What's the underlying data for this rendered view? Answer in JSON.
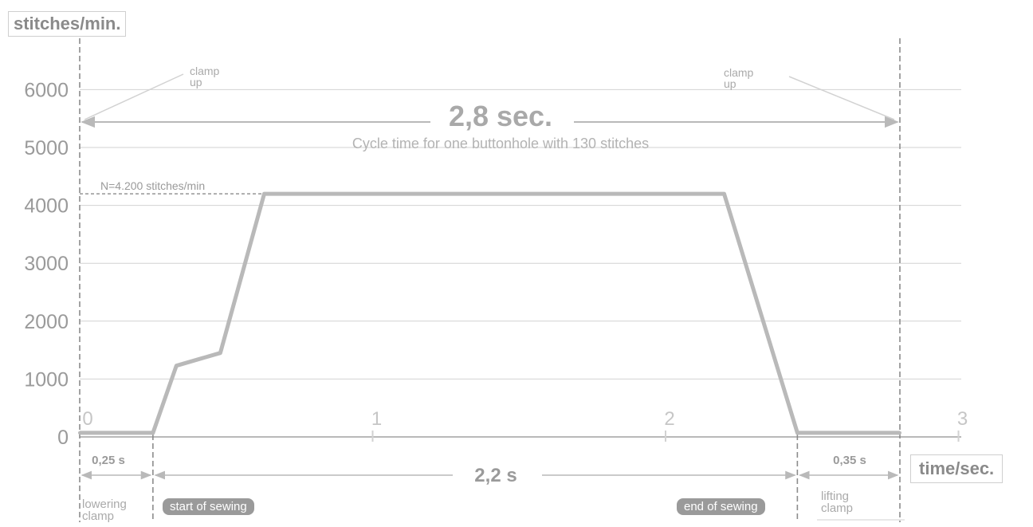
{
  "chart_data": {
    "type": "line",
    "ylabel": "stitches/min.",
    "xlabel": "time/sec.",
    "ylim": [
      0,
      6600
    ],
    "xlim": [
      0,
      3
    ],
    "y_ticks": [
      "0",
      "1000",
      "2000",
      "3000",
      "4000",
      "5000",
      "6000"
    ],
    "y_tick_values": [
      0,
      1000,
      2000,
      3000,
      4000,
      5000,
      6000
    ],
    "x_ticks": [
      "0",
      "1",
      "2",
      "3"
    ],
    "x_tick_values": [
      0,
      1,
      2,
      3
    ],
    "grid": "horizontal",
    "series": [
      {
        "x": [
          0,
          0.25,
          0.33,
          0.48,
          0.63,
          2.2,
          2.45,
          2.8
        ],
        "y": [
          70,
          70,
          1230,
          1450,
          4200,
          4200,
          70,
          70
        ]
      }
    ],
    "reference_line": {
      "y": 4200,
      "label": "N=4.200 stitches/min"
    },
    "total_cycle": {
      "label": "2,8 sec.",
      "subtitle": "Cycle time for one buttonhole with 130 stitches"
    },
    "clamp_up_label": "clamp\nup",
    "phases": [
      {
        "label": "0,25 s",
        "from": 0,
        "to": 0.25
      },
      {
        "label": "2,2 s",
        "from": 0.25,
        "to": 2.45
      },
      {
        "label": "0,35 s",
        "from": 2.45,
        "to": 2.8
      }
    ],
    "events": {
      "lowering": "lowering\nclamp",
      "start": "start of sewing",
      "end": "end of sewing",
      "lifting": "lifting\nclamp"
    }
  }
}
